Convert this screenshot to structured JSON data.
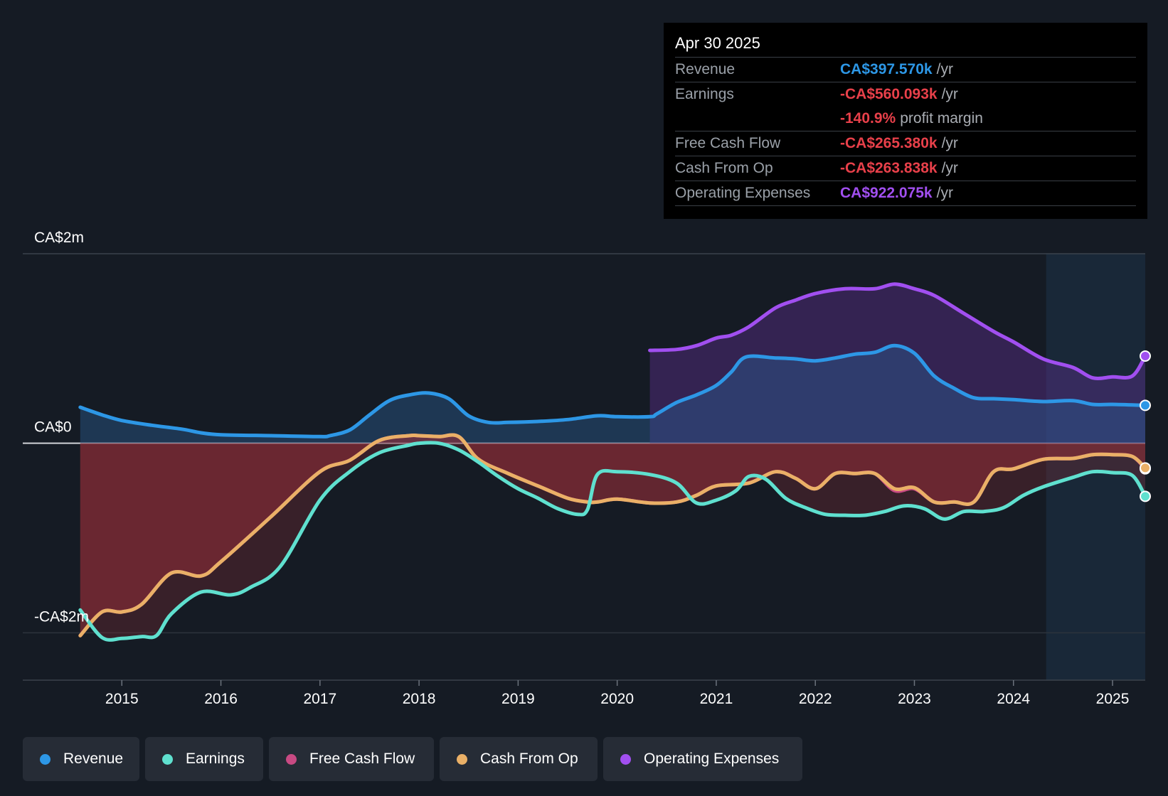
{
  "tooltip": {
    "date": "Apr 30 2025",
    "rows": [
      {
        "label": "Revenue",
        "value": "CA$397.570k",
        "unit": "/yr",
        "color": "#2d97e6"
      },
      {
        "label": "Earnings",
        "value": "-CA$560.093k",
        "unit": "/yr",
        "color": "#e8404a"
      },
      {
        "label": "",
        "value": "-140.9%",
        "unit": "profit margin",
        "color": "#e8404a"
      },
      {
        "label": "Free Cash Flow",
        "value": "-CA$265.380k",
        "unit": "/yr",
        "color": "#e8404a"
      },
      {
        "label": "Cash From Op",
        "value": "-CA$263.838k",
        "unit": "/yr",
        "color": "#e8404a"
      },
      {
        "label": "Operating Expenses",
        "value": "CA$922.075k",
        "unit": "/yr",
        "color": "#a14ff0"
      }
    ]
  },
  "legend": [
    {
      "label": "Revenue",
      "color": "#2d97e6"
    },
    {
      "label": "Earnings",
      "color": "#5fe0cf"
    },
    {
      "label": "Free Cash Flow",
      "color": "#c84a83"
    },
    {
      "label": "Cash From Op",
      "color": "#eab067"
    },
    {
      "label": "Operating Expenses",
      "color": "#a14ff0"
    }
  ],
  "chart_data": {
    "type": "line",
    "title": "",
    "xlabel": "",
    "ylabel": "",
    "y_tick_labels": [
      {
        "value": 2.0,
        "label": "CA$2m"
      },
      {
        "value": 0,
        "label": "CA$0"
      },
      {
        "value": -2.0,
        "label": "-CA$2m"
      }
    ],
    "ylim": [
      -2.5,
      2.0
    ],
    "xlim": [
      2014.0,
      2025.33
    ],
    "x_ticks": [
      2015,
      2016,
      2017,
      2018,
      2019,
      2020,
      2021,
      2022,
      2023,
      2024,
      2025
    ],
    "x_tick_labels": [
      "2015",
      "2016",
      "2017",
      "2018",
      "2019",
      "2020",
      "2021",
      "2022",
      "2023",
      "2024",
      "2025"
    ],
    "forecast_start": 2024.33,
    "units": "CA$ millions",
    "series": [
      {
        "name": "Revenue",
        "color": "#2d97e6",
        "x": [
          2014.58,
          2014.8,
          2015.0,
          2015.3,
          2015.6,
          2015.8,
          2016.0,
          2016.5,
          2017.0,
          2017.1,
          2017.3,
          2017.5,
          2017.7,
          2017.9,
          2018.1,
          2018.3,
          2018.5,
          2018.7,
          2018.9,
          2019.2,
          2019.5,
          2019.8,
          2020.0,
          2020.33,
          2020.4,
          2020.6,
          2020.8,
          2021.0,
          2021.15,
          2021.3,
          2021.6,
          2021.8,
          2022.0,
          2022.2,
          2022.4,
          2022.6,
          2022.8,
          2023.0,
          2023.2,
          2023.4,
          2023.6,
          2023.8,
          2024.0,
          2024.3,
          2024.6,
          2024.8,
          2025.0,
          2025.33
        ],
        "values": [
          0.38,
          0.3,
          0.24,
          0.19,
          0.15,
          0.11,
          0.09,
          0.08,
          0.07,
          0.08,
          0.14,
          0.3,
          0.45,
          0.51,
          0.53,
          0.47,
          0.29,
          0.22,
          0.22,
          0.23,
          0.25,
          0.29,
          0.28,
          0.28,
          0.31,
          0.43,
          0.51,
          0.61,
          0.75,
          0.91,
          0.9,
          0.89,
          0.87,
          0.9,
          0.94,
          0.96,
          1.03,
          0.95,
          0.71,
          0.58,
          0.48,
          0.47,
          0.46,
          0.44,
          0.45,
          0.41,
          0.41,
          0.4
        ]
      },
      {
        "name": "Earnings",
        "color": "#5fe0cf",
        "x": [
          2014.58,
          2014.8,
          2015.0,
          2015.2,
          2015.35,
          2015.5,
          2015.8,
          2016.1,
          2016.3,
          2016.6,
          2017.0,
          2017.3,
          2017.6,
          2017.9,
          2018.0,
          2018.2,
          2018.4,
          2018.6,
          2018.8,
          2019.0,
          2019.2,
          2019.4,
          2019.6,
          2019.7,
          2019.8,
          2020.0,
          2020.33,
          2020.6,
          2020.8,
          2021.0,
          2021.2,
          2021.33,
          2021.5,
          2021.7,
          2021.9,
          2022.1,
          2022.3,
          2022.5,
          2022.7,
          2022.9,
          2023.1,
          2023.3,
          2023.5,
          2023.7,
          2023.9,
          2024.1,
          2024.3,
          2024.6,
          2024.8,
          2025.0,
          2025.2,
          2025.33
        ],
        "values": [
          -1.76,
          -2.05,
          -2.06,
          -2.04,
          -2.03,
          -1.8,
          -1.57,
          -1.6,
          -1.52,
          -1.3,
          -0.6,
          -0.3,
          -0.1,
          -0.02,
          0.0,
          0.0,
          -0.07,
          -0.2,
          -0.35,
          -0.48,
          -0.58,
          -0.69,
          -0.75,
          -0.7,
          -0.33,
          -0.3,
          -0.33,
          -0.42,
          -0.63,
          -0.6,
          -0.5,
          -0.35,
          -0.38,
          -0.58,
          -0.68,
          -0.75,
          -0.76,
          -0.76,
          -0.72,
          -0.66,
          -0.69,
          -0.8,
          -0.72,
          -0.72,
          -0.68,
          -0.55,
          -0.46,
          -0.36,
          -0.3,
          -0.31,
          -0.34,
          -0.56
        ]
      },
      {
        "name": "Free Cash Flow",
        "color": "#c84a83",
        "x": [
          2014.58,
          2014.8,
          2015.0,
          2015.2,
          2015.5,
          2015.8,
          2016.0,
          2016.5,
          2017.0,
          2017.3,
          2017.6,
          2017.9,
          2018.0,
          2018.2,
          2018.4,
          2018.6,
          2018.9,
          2019.2,
          2019.5,
          2019.7,
          2019.8,
          2020.0,
          2020.33,
          2020.6,
          2020.8,
          2021.0,
          2021.33,
          2021.6,
          2021.8,
          2022.0,
          2022.2,
          2022.4,
          2022.6,
          2022.8,
          2023.0,
          2023.2,
          2023.4,
          2023.6,
          2023.8,
          2024.0,
          2024.3,
          2024.6,
          2024.8,
          2025.0,
          2025.2,
          2025.33
        ],
        "values": [
          -2.03,
          -1.78,
          -1.78,
          -1.7,
          -1.37,
          -1.4,
          -1.25,
          -0.78,
          -0.3,
          -0.18,
          0.03,
          0.08,
          0.08,
          0.07,
          0.07,
          -0.17,
          -0.32,
          -0.45,
          -0.58,
          -0.62,
          -0.62,
          -0.59,
          -0.63,
          -0.62,
          -0.55,
          -0.45,
          -0.42,
          -0.3,
          -0.37,
          -0.48,
          -0.32,
          -0.32,
          -0.32,
          -0.5,
          -0.48,
          -0.62,
          -0.62,
          -0.62,
          -0.3,
          -0.27,
          -0.17,
          -0.16,
          -0.12,
          -0.12,
          -0.14,
          -0.27
        ]
      },
      {
        "name": "Cash From Op",
        "color": "#eab067",
        "x": [
          2014.58,
          2014.8,
          2015.0,
          2015.2,
          2015.5,
          2015.8,
          2016.0,
          2016.5,
          2017.0,
          2017.3,
          2017.6,
          2017.9,
          2018.0,
          2018.2,
          2018.4,
          2018.6,
          2018.9,
          2019.2,
          2019.5,
          2019.7,
          2019.8,
          2020.0,
          2020.33,
          2020.6,
          2020.8,
          2021.0,
          2021.33,
          2021.6,
          2021.8,
          2022.0,
          2022.2,
          2022.4,
          2022.6,
          2022.8,
          2023.0,
          2023.2,
          2023.4,
          2023.6,
          2023.8,
          2024.0,
          2024.3,
          2024.6,
          2024.8,
          2025.0,
          2025.2,
          2025.33
        ],
        "values": [
          -2.03,
          -1.78,
          -1.78,
          -1.7,
          -1.37,
          -1.4,
          -1.25,
          -0.78,
          -0.3,
          -0.18,
          0.03,
          0.08,
          0.08,
          0.07,
          0.07,
          -0.17,
          -0.32,
          -0.45,
          -0.58,
          -0.62,
          -0.62,
          -0.59,
          -0.63,
          -0.62,
          -0.55,
          -0.45,
          -0.42,
          -0.3,
          -0.37,
          -0.48,
          -0.32,
          -0.32,
          -0.32,
          -0.48,
          -0.47,
          -0.62,
          -0.62,
          -0.62,
          -0.3,
          -0.27,
          -0.17,
          -0.16,
          -0.12,
          -0.12,
          -0.14,
          -0.26
        ]
      },
      {
        "name": "Operating Expenses",
        "color": "#a14ff0",
        "x": [
          2020.33,
          2020.6,
          2020.8,
          2021.0,
          2021.15,
          2021.33,
          2021.6,
          2021.8,
          2022.0,
          2022.3,
          2022.6,
          2022.8,
          2023.0,
          2023.2,
          2023.5,
          2023.8,
          2024.0,
          2024.3,
          2024.6,
          2024.8,
          2025.0,
          2025.2,
          2025.33
        ],
        "values": [
          0.98,
          0.99,
          1.03,
          1.11,
          1.14,
          1.23,
          1.43,
          1.51,
          1.58,
          1.63,
          1.63,
          1.68,
          1.63,
          1.56,
          1.37,
          1.18,
          1.07,
          0.89,
          0.8,
          0.69,
          0.7,
          0.71,
          0.92
        ]
      }
    ]
  }
}
